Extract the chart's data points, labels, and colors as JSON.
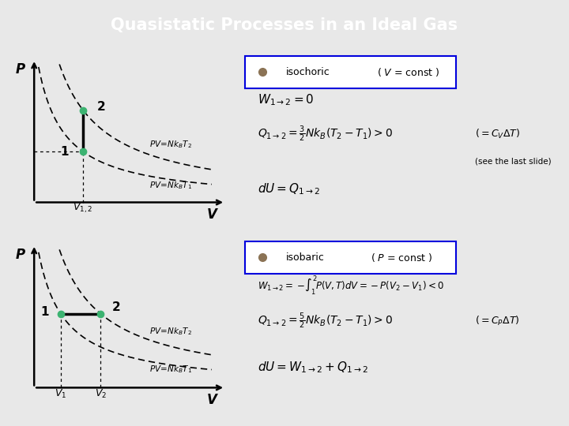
{
  "title": "Quasistatic Processes in an Ideal Gas",
  "title_bg": "#1111CC",
  "title_color": "#FFFFFF",
  "slide_bg": "#E8E8E8",
  "panel_bg": "#FFFFF0",
  "dot_color": "#3CB371",
  "T1": 0.55,
  "T2": 1.0,
  "V_iso": 0.32,
  "pmax": 4.5,
  "vmin": 0.1,
  "vmax": 0.9,
  "V1_bar": 0.22,
  "V2_bar": 0.42,
  "label_box_color": "#0000DD",
  "isochoric_text": "isochoric   ( V = const )",
  "isobaric_text": "isobaric   ( P = const )"
}
